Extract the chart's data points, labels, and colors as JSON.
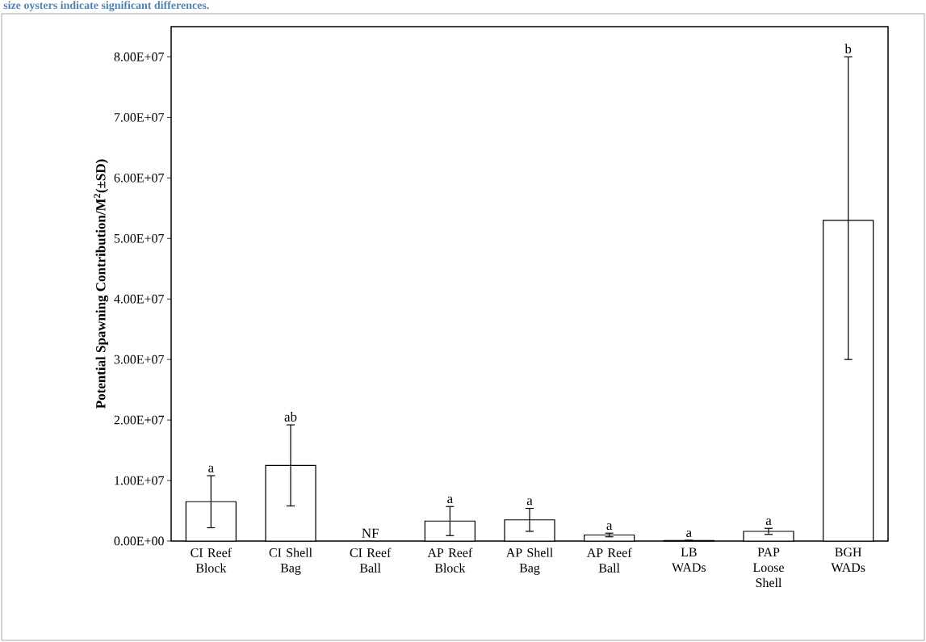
{
  "chart_data": {
    "type": "bar",
    "ylabel": "Potential Spawning Contribution/M$^{2}$(±SD)",
    "annotations": [
      "size oysters indicate significant differences.",
      "a",
      "ab",
      "NF",
      "a",
      "a",
      "a",
      "a",
      "a",
      "b"
    ],
    "categories": [
      "CI Reef Block",
      "CI Shell Bag",
      "CI Reef Ball",
      "AP Reef Block",
      "AP Shell Bag",
      "AP Reef Ball",
      "LB WADs",
      "PAP Loose Shell",
      "BGH WADs"
    ],
    "values": [
      6500000,
      12500000,
      null,
      3300000,
      3500000,
      1000000,
      100000,
      1600000,
      53000000
    ],
    "errors": [
      4300000,
      6700000,
      null,
      2400000,
      1900000,
      300000,
      null,
      500000,
      [
        30000000,
        80000000
      ]
    ],
    "color": "#ffffff",
    "ylim": [
      0,
      85000000
    ],
    "yticks": [
      {
        "value": 0,
        "label": "0.00E+00"
      },
      {
        "value": 10000000,
        "label": "1.00E+07"
      },
      {
        "value": 20000000,
        "label": "2.00E+07"
      },
      {
        "value": 30000000,
        "label": "3.00E+07"
      },
      {
        "value": 40000000,
        "label": "4.00E+07"
      },
      {
        "value": 50000000,
        "label": "5.00E+07"
      },
      {
        "value": 60000000,
        "label": "6.00E+07"
      },
      {
        "value": 70000000,
        "label": "7.00E+07"
      },
      {
        "value": 80000000,
        "label": "8.00E+07"
      }
    ],
    "grid": false
  }
}
